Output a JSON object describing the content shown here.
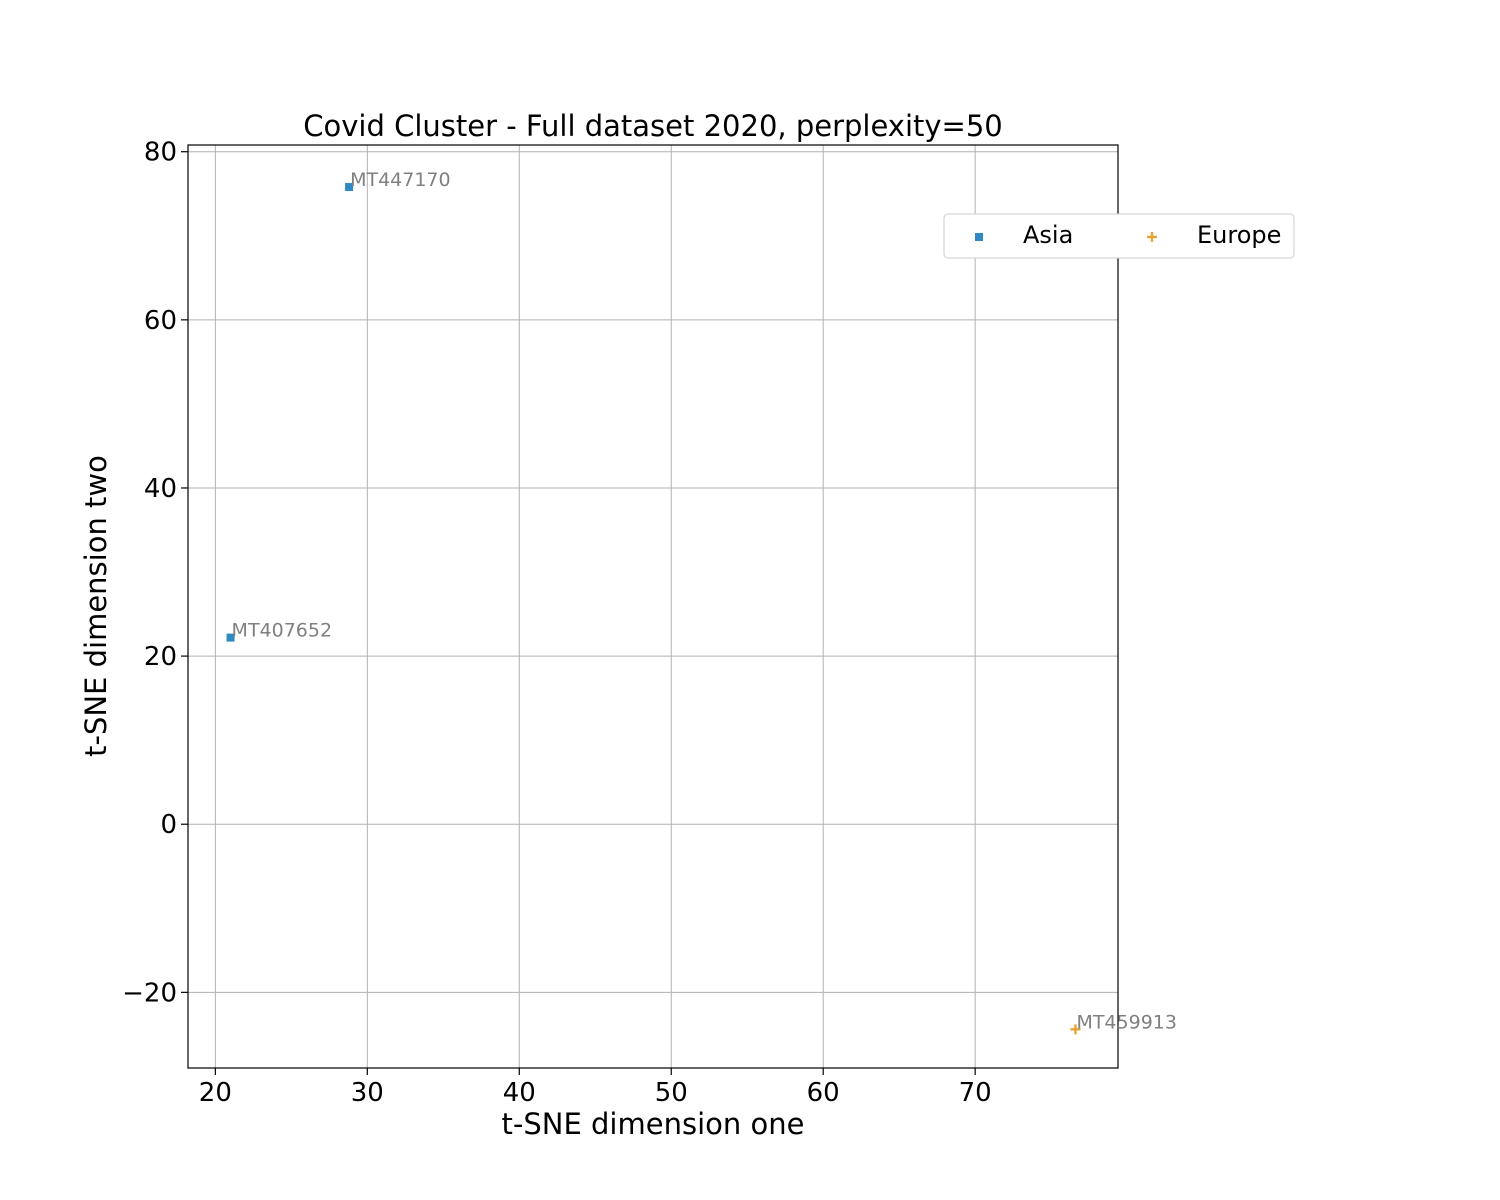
{
  "chart_data": {
    "type": "scatter",
    "title": "Covid Cluster - Full dataset 2020, perplexity=50",
    "xlabel": "t-SNE dimension one",
    "ylabel": "t-SNE dimension two",
    "xlim": [
      18.2,
      79.4
    ],
    "ylim": [
      -29.0,
      80.8
    ],
    "xticks": [
      20,
      30,
      40,
      50,
      60,
      70
    ],
    "yticks": [
      -20,
      0,
      20,
      40,
      60,
      80
    ],
    "xtick_labels": [
      "20",
      "30",
      "40",
      "50",
      "60",
      "70"
    ],
    "ytick_labels": [
      "−20",
      "0",
      "20",
      "40",
      "60",
      "80"
    ],
    "grid": true,
    "legend_position": "upper-right, outside plot",
    "series": [
      {
        "name": "Asia",
        "marker": "square",
        "color": "#2f8ac4",
        "points": [
          {
            "x": 28.8,
            "y": 75.8,
            "label": "MT447170"
          },
          {
            "x": 21.0,
            "y": 22.2,
            "label": "MT407652"
          }
        ]
      },
      {
        "name": "Europe",
        "marker": "plus",
        "color": "#e8a233",
        "points": [
          {
            "x": 76.6,
            "y": -24.4,
            "label": "MT459913"
          }
        ]
      }
    ]
  }
}
